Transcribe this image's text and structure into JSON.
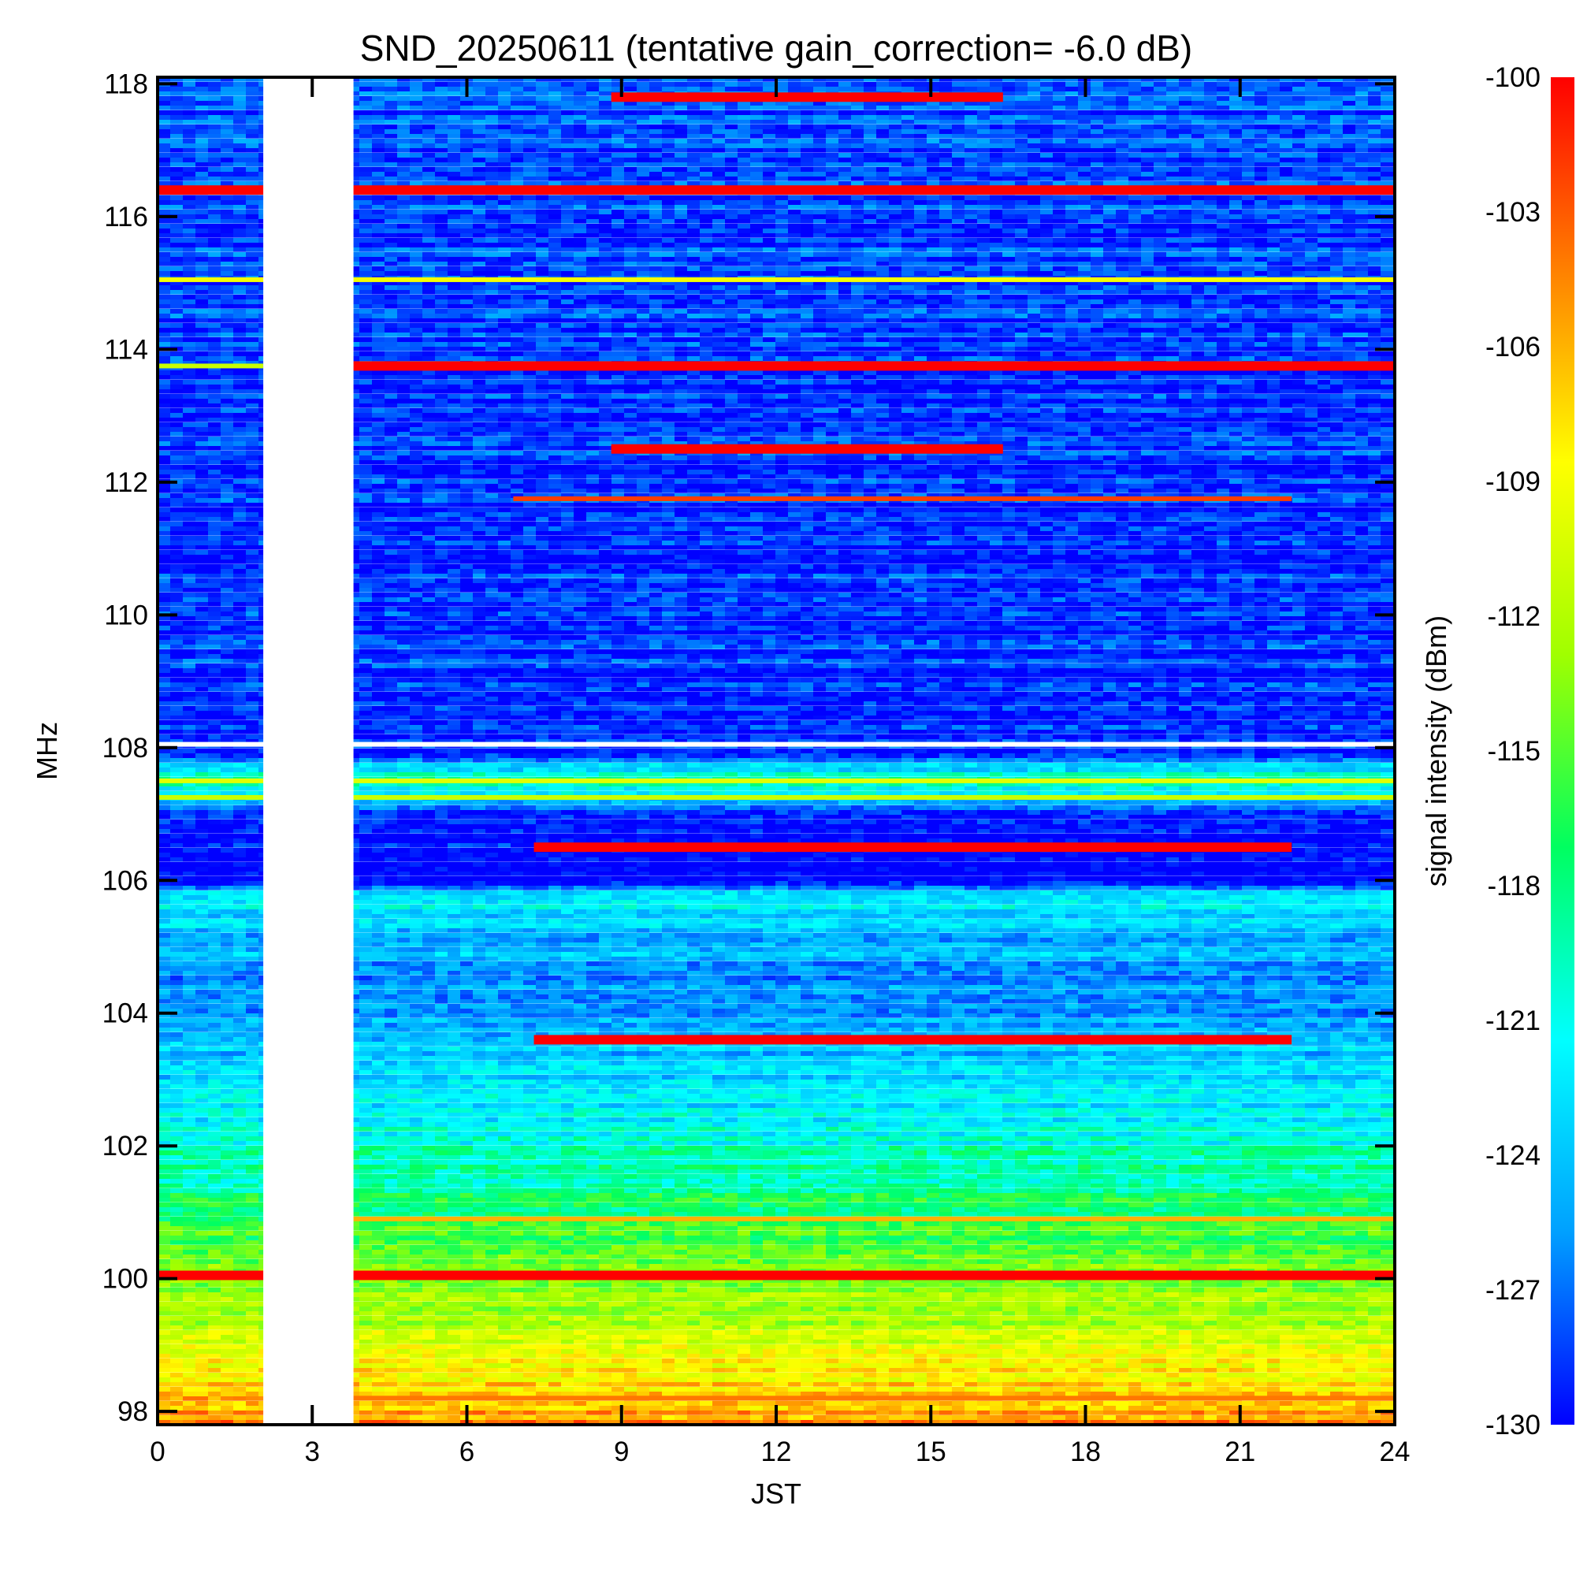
{
  "chart_data": {
    "type": "heatmap",
    "title": "SND_20250611 (tentative gain_correction= -6.0 dB)",
    "xlabel": "JST",
    "ylabel": "MHz",
    "colorbar_label": "signal intensity (dBm)",
    "xlim": [
      0,
      24
    ],
    "ylim": [
      97.8,
      118.1
    ],
    "x_ticks": [
      "0",
      "3",
      "6",
      "9",
      "12",
      "15",
      "18",
      "21",
      "24"
    ],
    "x_tick_values": [
      0,
      3,
      6,
      9,
      12,
      15,
      18,
      21,
      24
    ],
    "y_ticks": [
      "98",
      "100",
      "102",
      "104",
      "106",
      "108",
      "110",
      "112",
      "114",
      "116",
      "118"
    ],
    "y_tick_values": [
      98,
      100,
      102,
      104,
      106,
      108,
      110,
      112,
      114,
      116,
      118
    ],
    "colorbar_range": [
      -130,
      -100
    ],
    "colorbar_ticks": [
      "-100",
      "-103",
      "-106",
      "-109",
      "-112",
      "-115",
      "-118",
      "-121",
      "-124",
      "-127",
      "-130"
    ],
    "colorbar_tick_values": [
      -100,
      -103,
      -106,
      -109,
      -112,
      -115,
      -118,
      -121,
      -124,
      -127,
      -130
    ],
    "colormap": [
      "#0000ff",
      "#00a0ff",
      "#00ffff",
      "#00ff60",
      "#a0ff00",
      "#ffff00",
      "#ff8000",
      "#ff0000"
    ],
    "no_data_intervals_jst": [
      [
        2.05,
        3.8
      ]
    ],
    "frequency_background_dbm": [
      {
        "f": 97.8,
        "dbm": -105
      },
      {
        "f": 98.5,
        "dbm": -108
      },
      {
        "f": 99.2,
        "dbm": -111
      },
      {
        "f": 100.5,
        "dbm": -115
      },
      {
        "f": 101.5,
        "dbm": -119
      },
      {
        "f": 103.0,
        "dbm": -123
      },
      {
        "f": 104.5,
        "dbm": -126
      },
      {
        "f": 105.2,
        "dbm": -124
      },
      {
        "f": 105.8,
        "dbm": -122
      },
      {
        "f": 106.0,
        "dbm": -130
      },
      {
        "f": 107.0,
        "dbm": -129
      },
      {
        "f": 107.5,
        "dbm": -118
      },
      {
        "f": 107.9,
        "dbm": -128
      },
      {
        "f": 108.1,
        "dbm": -129
      },
      {
        "f": 118.1,
        "dbm": -128
      }
    ],
    "strong_signals": [
      {
        "f": 100.05,
        "dbm": -100,
        "x_from": 0,
        "x_to": 24
      },
      {
        "f": 116.4,
        "dbm": -100,
        "x_from": 0,
        "x_to": 24
      },
      {
        "f": 113.75,
        "dbm": -100,
        "x_from": 3.8,
        "x_to": 24
      },
      {
        "f": 113.75,
        "dbm": -111,
        "x_from": 0,
        "x_to": 2.05
      },
      {
        "f": 115.05,
        "dbm": -109,
        "x_from": 0,
        "x_to": 24
      },
      {
        "f": 106.5,
        "dbm": -100,
        "x_from": 7.3,
        "x_to": 22.0
      },
      {
        "f": 103.6,
        "dbm": -100,
        "x_from": 7.3,
        "x_to": 22.0
      },
      {
        "f": 111.75,
        "dbm": -102,
        "x_from": 6.9,
        "x_to": 22.0
      },
      {
        "f": 112.5,
        "dbm": -100,
        "x_from": 8.8,
        "x_to": 16.4
      },
      {
        "f": 117.8,
        "dbm": -100,
        "x_from": 8.8,
        "x_to": 16.4
      },
      {
        "f": 107.25,
        "dbm": -111,
        "x_from": 0,
        "x_to": 24
      },
      {
        "f": 107.5,
        "dbm": -110,
        "x_from": 0,
        "x_to": 24
      },
      {
        "f": 100.9,
        "dbm": -106,
        "x_from": 3.8,
        "x_to": 24
      },
      {
        "f": 98.2,
        "dbm": -104,
        "x_from": 3.8,
        "x_to": 24
      }
    ]
  }
}
